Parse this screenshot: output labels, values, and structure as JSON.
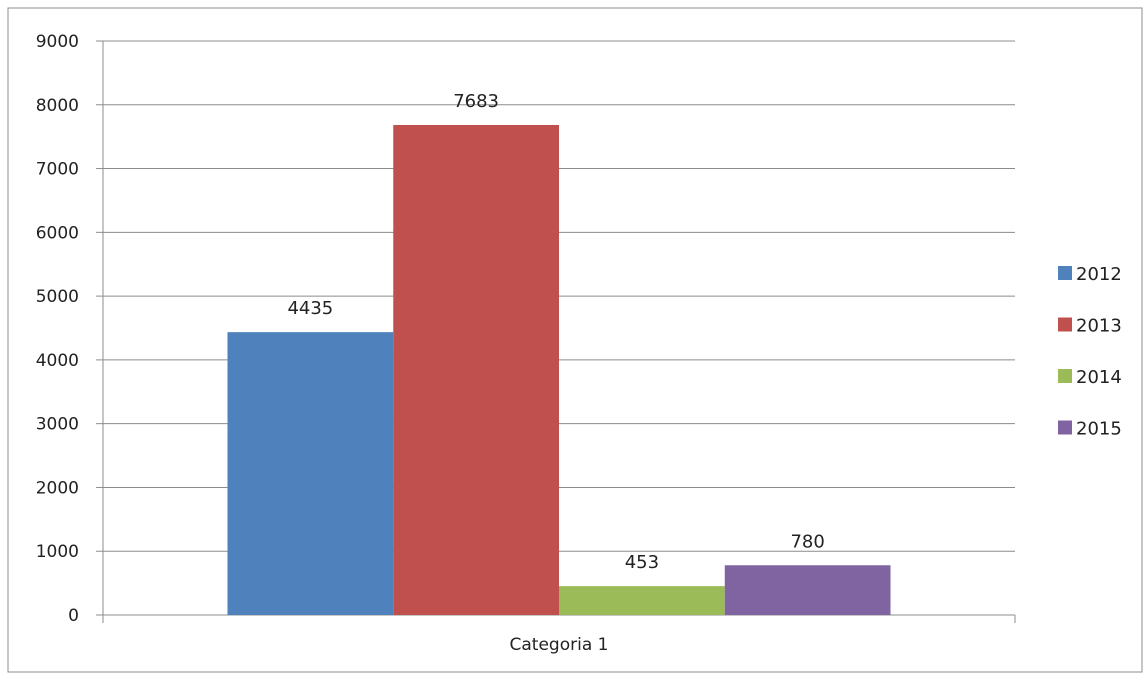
{
  "chart_data": {
    "type": "bar",
    "categories": [
      "Categoria 1"
    ],
    "series": [
      {
        "name": "2012",
        "values": [
          4435
        ],
        "color": "#4F81BD"
      },
      {
        "name": "2013",
        "values": [
          7683
        ],
        "color": "#C0504D"
      },
      {
        "name": "2014",
        "values": [
          453
        ],
        "color": "#9BBB59"
      },
      {
        "name": "2015",
        "values": [
          780
        ],
        "color": "#8064A2"
      }
    ],
    "ylim": [
      0,
      9000
    ],
    "yticks": [
      "0",
      "1000",
      "2000",
      "3000",
      "4000",
      "5000",
      "6000",
      "7000",
      "8000",
      "9000"
    ],
    "data_labels": [
      "4435",
      "7683",
      "453",
      "780"
    ],
    "grid": true,
    "legend_position": "right",
    "title": "",
    "xlabel": "",
    "ylabel": ""
  }
}
